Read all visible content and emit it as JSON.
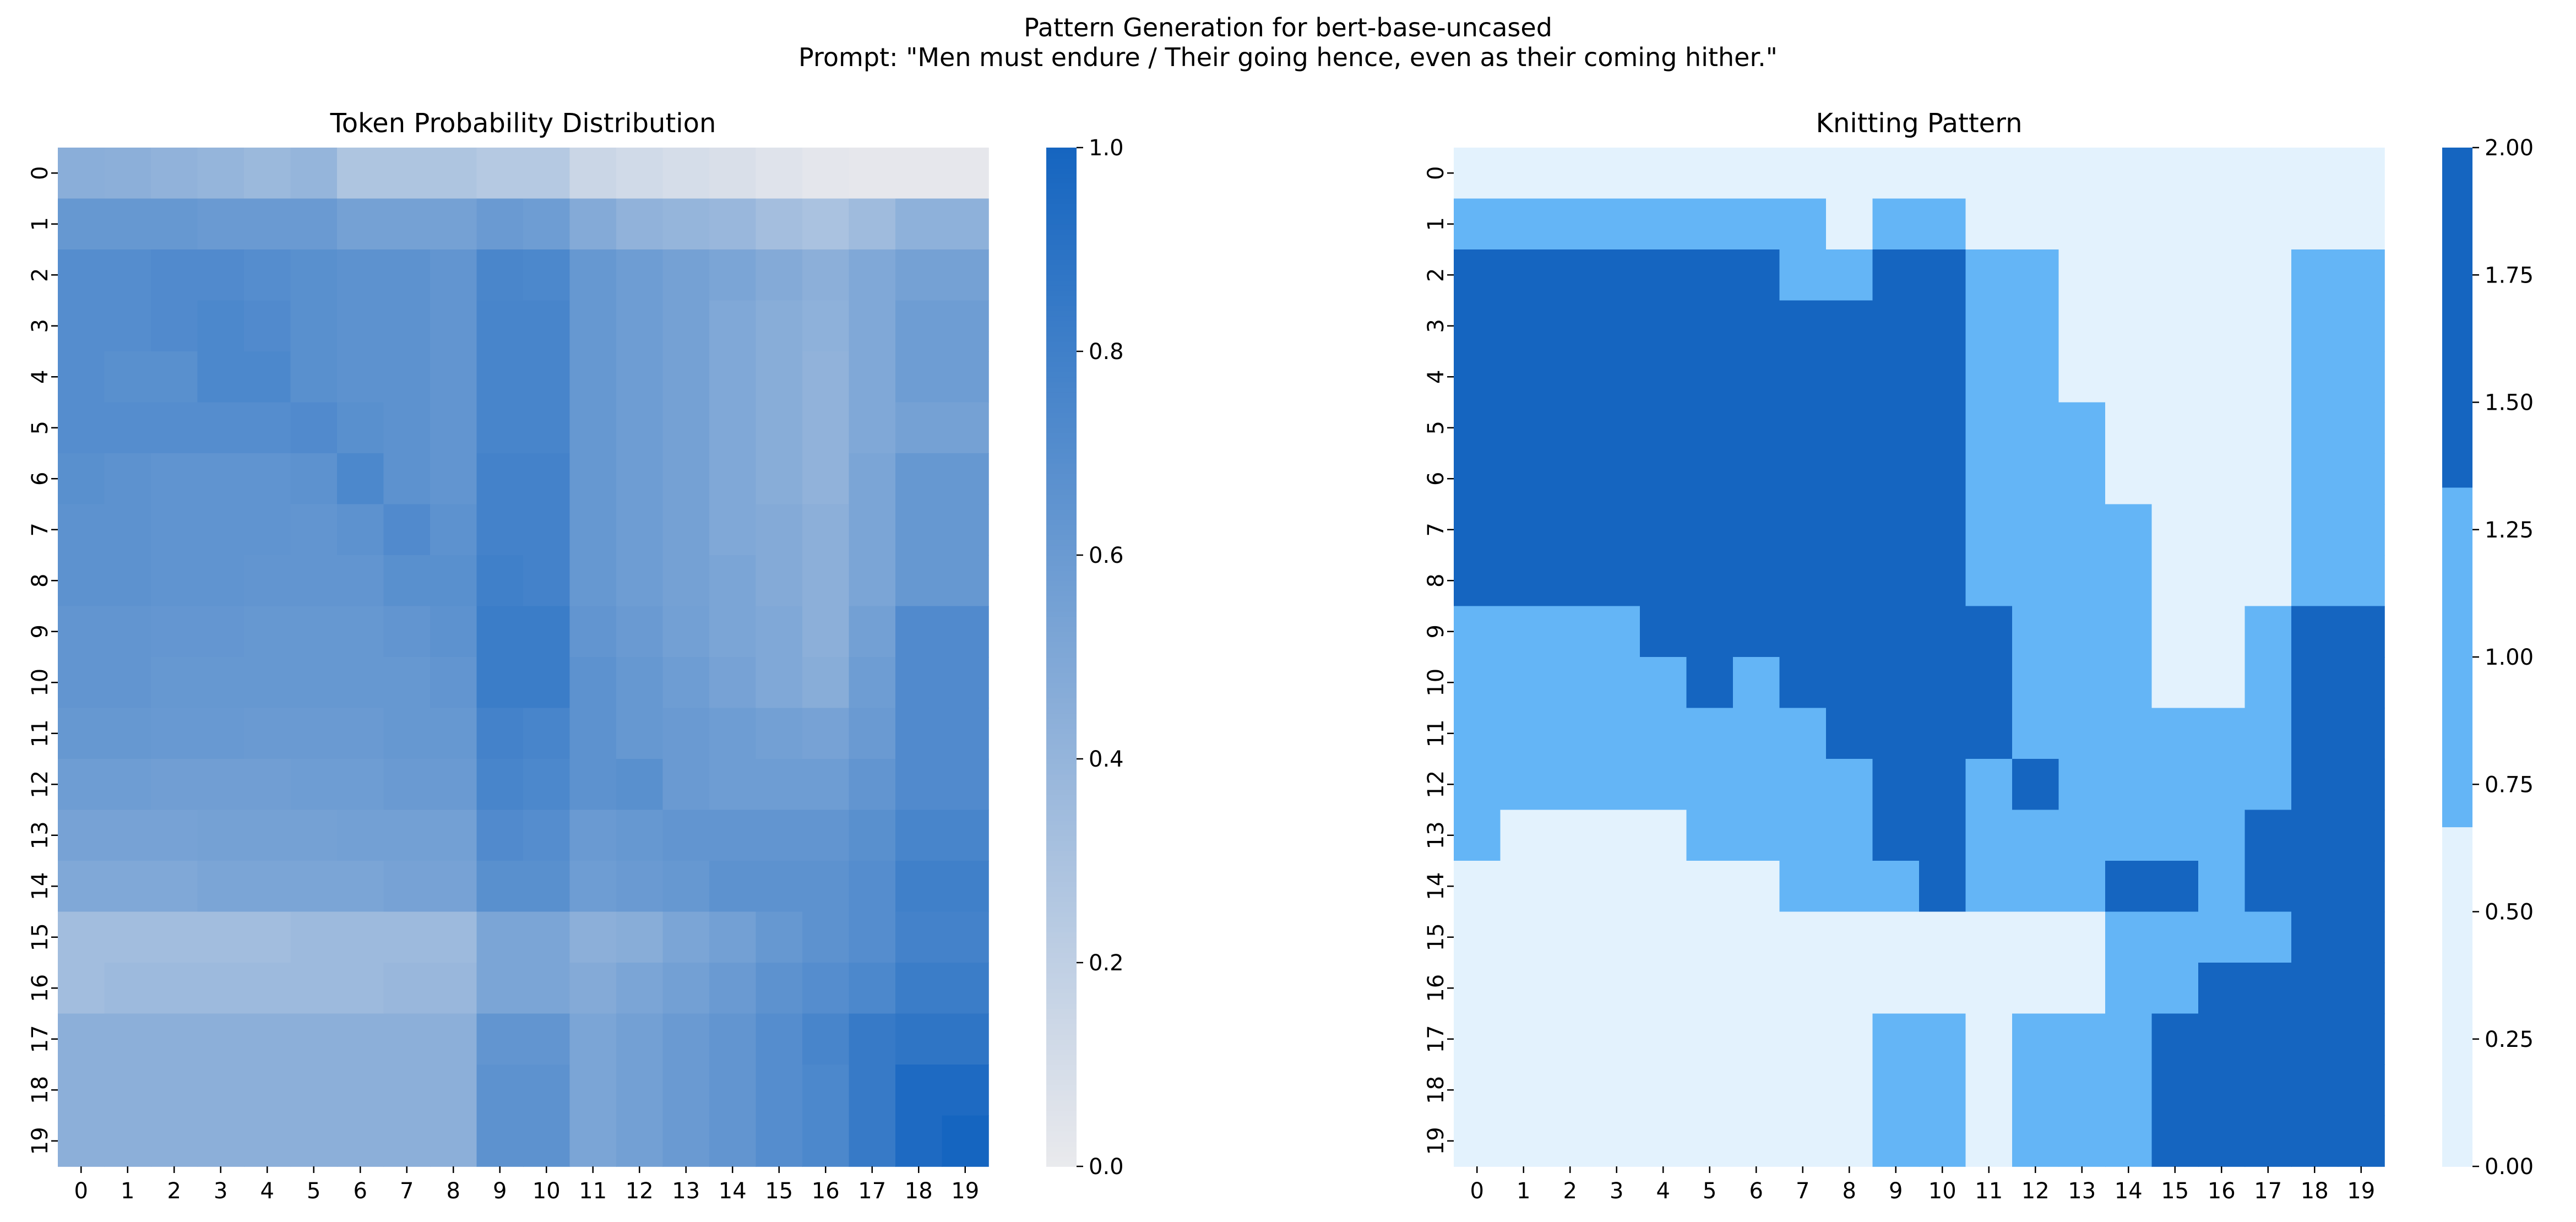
{
  "figure": {
    "title_line1": "Pattern Generation for bert-base-uncased",
    "title_line2": "Prompt: \"Men must endure / Their going hence, even as their coming hither.\""
  },
  "chart_data": [
    {
      "type": "heatmap",
      "title": "Token Probability Distribution",
      "xticks": [
        "0",
        "1",
        "2",
        "3",
        "4",
        "5",
        "6",
        "7",
        "8",
        "9",
        "10",
        "11",
        "12",
        "13",
        "14",
        "15",
        "16",
        "17",
        "18",
        "19"
      ],
      "yticks": [
        "0",
        "1",
        "2",
        "3",
        "4",
        "5",
        "6",
        "7",
        "8",
        "9",
        "10",
        "11",
        "12",
        "13",
        "14",
        "15",
        "16",
        "17",
        "18",
        "19"
      ],
      "colorbar": {
        "min": 0.0,
        "max": 1.0,
        "ticks": [
          "0.0",
          "0.2",
          "0.4",
          "0.6",
          "0.8",
          "1.0"
        ],
        "tick_values": [
          0,
          0.2,
          0.4,
          0.6,
          0.8,
          1.0
        ]
      },
      "colormap": {
        "low": "#eaeaed",
        "high": "#1565c0"
      },
      "values": [
        [
          0.45,
          0.44,
          0.42,
          0.4,
          0.37,
          0.4,
          0.28,
          0.28,
          0.28,
          0.25,
          0.25,
          0.15,
          0.12,
          0.1,
          0.08,
          0.05,
          0.03,
          0.02,
          0.02,
          0.02
        ],
        [
          0.62,
          0.62,
          0.62,
          0.6,
          0.6,
          0.6,
          0.55,
          0.55,
          0.55,
          0.6,
          0.58,
          0.48,
          0.42,
          0.4,
          0.38,
          0.33,
          0.3,
          0.35,
          0.43,
          0.43
        ],
        [
          0.7,
          0.7,
          0.72,
          0.72,
          0.7,
          0.68,
          0.66,
          0.66,
          0.64,
          0.75,
          0.74,
          0.62,
          0.58,
          0.55,
          0.52,
          0.48,
          0.44,
          0.5,
          0.55,
          0.55
        ],
        [
          0.7,
          0.7,
          0.72,
          0.74,
          0.72,
          0.68,
          0.66,
          0.66,
          0.64,
          0.76,
          0.76,
          0.62,
          0.58,
          0.55,
          0.5,
          0.46,
          0.43,
          0.5,
          0.58,
          0.58
        ],
        [
          0.7,
          0.68,
          0.68,
          0.74,
          0.74,
          0.68,
          0.66,
          0.66,
          0.64,
          0.76,
          0.76,
          0.62,
          0.58,
          0.55,
          0.5,
          0.46,
          0.42,
          0.5,
          0.58,
          0.58
        ],
        [
          0.7,
          0.7,
          0.7,
          0.7,
          0.7,
          0.72,
          0.68,
          0.66,
          0.64,
          0.76,
          0.76,
          0.62,
          0.58,
          0.55,
          0.5,
          0.46,
          0.42,
          0.5,
          0.55,
          0.55
        ],
        [
          0.68,
          0.66,
          0.65,
          0.65,
          0.65,
          0.66,
          0.74,
          0.66,
          0.64,
          0.78,
          0.78,
          0.62,
          0.58,
          0.55,
          0.5,
          0.46,
          0.42,
          0.52,
          0.62,
          0.62
        ],
        [
          0.66,
          0.66,
          0.65,
          0.65,
          0.65,
          0.64,
          0.66,
          0.72,
          0.66,
          0.78,
          0.78,
          0.62,
          0.58,
          0.55,
          0.5,
          0.48,
          0.44,
          0.52,
          0.62,
          0.62
        ],
        [
          0.66,
          0.66,
          0.65,
          0.65,
          0.64,
          0.64,
          0.64,
          0.68,
          0.68,
          0.8,
          0.78,
          0.62,
          0.58,
          0.55,
          0.52,
          0.48,
          0.44,
          0.52,
          0.62,
          0.62
        ],
        [
          0.64,
          0.64,
          0.63,
          0.63,
          0.62,
          0.62,
          0.62,
          0.64,
          0.66,
          0.82,
          0.82,
          0.64,
          0.6,
          0.56,
          0.52,
          0.5,
          0.44,
          0.56,
          0.72,
          0.72
        ],
        [
          0.64,
          0.64,
          0.62,
          0.62,
          0.62,
          0.62,
          0.62,
          0.62,
          0.64,
          0.82,
          0.82,
          0.66,
          0.62,
          0.58,
          0.54,
          0.5,
          0.46,
          0.58,
          0.72,
          0.72
        ],
        [
          0.62,
          0.62,
          0.61,
          0.61,
          0.6,
          0.6,
          0.6,
          0.62,
          0.62,
          0.78,
          0.76,
          0.66,
          0.62,
          0.6,
          0.58,
          0.56,
          0.54,
          0.6,
          0.72,
          0.72
        ],
        [
          0.58,
          0.58,
          0.57,
          0.57,
          0.57,
          0.58,
          0.58,
          0.6,
          0.6,
          0.76,
          0.74,
          0.66,
          0.68,
          0.6,
          0.58,
          0.58,
          0.58,
          0.64,
          0.72,
          0.72
        ],
        [
          0.54,
          0.54,
          0.54,
          0.55,
          0.55,
          0.55,
          0.56,
          0.56,
          0.56,
          0.72,
          0.7,
          0.6,
          0.62,
          0.64,
          0.64,
          0.64,
          0.64,
          0.68,
          0.76,
          0.76
        ],
        [
          0.5,
          0.5,
          0.5,
          0.52,
          0.52,
          0.52,
          0.52,
          0.54,
          0.54,
          0.68,
          0.68,
          0.58,
          0.6,
          0.62,
          0.66,
          0.66,
          0.66,
          0.7,
          0.8,
          0.8
        ],
        [
          0.34,
          0.34,
          0.34,
          0.34,
          0.34,
          0.36,
          0.36,
          0.36,
          0.36,
          0.52,
          0.52,
          0.44,
          0.46,
          0.52,
          0.56,
          0.62,
          0.66,
          0.7,
          0.78,
          0.78
        ],
        [
          0.34,
          0.36,
          0.36,
          0.36,
          0.36,
          0.36,
          0.36,
          0.38,
          0.38,
          0.52,
          0.52,
          0.48,
          0.52,
          0.56,
          0.6,
          0.66,
          0.7,
          0.74,
          0.82,
          0.82
        ],
        [
          0.44,
          0.44,
          0.44,
          0.44,
          0.44,
          0.44,
          0.44,
          0.44,
          0.44,
          0.64,
          0.64,
          0.52,
          0.56,
          0.6,
          0.64,
          0.7,
          0.76,
          0.84,
          0.88,
          0.88
        ],
        [
          0.44,
          0.44,
          0.44,
          0.44,
          0.44,
          0.44,
          0.44,
          0.44,
          0.44,
          0.66,
          0.66,
          0.52,
          0.56,
          0.6,
          0.64,
          0.7,
          0.74,
          0.84,
          0.96,
          0.96
        ],
        [
          0.44,
          0.44,
          0.44,
          0.44,
          0.44,
          0.44,
          0.44,
          0.44,
          0.44,
          0.66,
          0.66,
          0.52,
          0.56,
          0.6,
          0.64,
          0.7,
          0.74,
          0.84,
          0.96,
          1.0
        ]
      ]
    },
    {
      "type": "heatmap",
      "title": "Knitting Pattern",
      "xticks": [
        "0",
        "1",
        "2",
        "3",
        "4",
        "5",
        "6",
        "7",
        "8",
        "9",
        "10",
        "11",
        "12",
        "13",
        "14",
        "15",
        "16",
        "17",
        "18",
        "19"
      ],
      "yticks": [
        "0",
        "1",
        "2",
        "3",
        "4",
        "5",
        "6",
        "7",
        "8",
        "9",
        "10",
        "11",
        "12",
        "13",
        "14",
        "15",
        "16",
        "17",
        "18",
        "19"
      ],
      "colorbar": {
        "min": 0.0,
        "max": 2.0,
        "ticks": [
          "0.00",
          "0.25",
          "0.50",
          "0.75",
          "1.00",
          "1.25",
          "1.50",
          "1.75",
          "2.00"
        ],
        "tick_values": [
          0,
          0.25,
          0.5,
          0.75,
          1.0,
          1.25,
          1.5,
          1.75,
          2.0
        ]
      },
      "levels": [
        {
          "value": 0,
          "color": "#e3f2fd"
        },
        {
          "value": 1,
          "color": "#64b5f6"
        },
        {
          "value": 2,
          "color": "#1565c0"
        }
      ],
      "values": [
        [
          0,
          0,
          0,
          0,
          0,
          0,
          0,
          0,
          0,
          0,
          0,
          0,
          0,
          0,
          0,
          0,
          0,
          0,
          0,
          0
        ],
        [
          1,
          1,
          1,
          1,
          1,
          1,
          1,
          1,
          0,
          1,
          1,
          0,
          0,
          0,
          0,
          0,
          0,
          0,
          0,
          0
        ],
        [
          2,
          2,
          2,
          2,
          2,
          2,
          2,
          1,
          1,
          2,
          2,
          1,
          1,
          0,
          0,
          0,
          0,
          0,
          1,
          1
        ],
        [
          2,
          2,
          2,
          2,
          2,
          2,
          2,
          2,
          2,
          2,
          2,
          1,
          1,
          0,
          0,
          0,
          0,
          0,
          1,
          1
        ],
        [
          2,
          2,
          2,
          2,
          2,
          2,
          2,
          2,
          2,
          2,
          2,
          1,
          1,
          0,
          0,
          0,
          0,
          0,
          1,
          1
        ],
        [
          2,
          2,
          2,
          2,
          2,
          2,
          2,
          2,
          2,
          2,
          2,
          1,
          1,
          1,
          0,
          0,
          0,
          0,
          1,
          1
        ],
        [
          2,
          2,
          2,
          2,
          2,
          2,
          2,
          2,
          2,
          2,
          2,
          1,
          1,
          1,
          0,
          0,
          0,
          0,
          1,
          1
        ],
        [
          2,
          2,
          2,
          2,
          2,
          2,
          2,
          2,
          2,
          2,
          2,
          1,
          1,
          1,
          1,
          0,
          0,
          0,
          1,
          1
        ],
        [
          2,
          2,
          2,
          2,
          2,
          2,
          2,
          2,
          2,
          2,
          2,
          1,
          1,
          1,
          1,
          0,
          0,
          0,
          1,
          1
        ],
        [
          1,
          1,
          1,
          1,
          2,
          2,
          2,
          2,
          2,
          2,
          2,
          2,
          1,
          1,
          1,
          0,
          0,
          1,
          2,
          2
        ],
        [
          1,
          1,
          1,
          1,
          1,
          2,
          1,
          2,
          2,
          2,
          2,
          2,
          1,
          1,
          1,
          0,
          0,
          1,
          2,
          2
        ],
        [
          1,
          1,
          1,
          1,
          1,
          1,
          1,
          1,
          2,
          2,
          2,
          2,
          1,
          1,
          1,
          1,
          1,
          1,
          2,
          2
        ],
        [
          1,
          1,
          1,
          1,
          1,
          1,
          1,
          1,
          1,
          2,
          2,
          1,
          2,
          1,
          1,
          1,
          1,
          1,
          2,
          2
        ],
        [
          1,
          0,
          0,
          0,
          0,
          1,
          1,
          1,
          1,
          2,
          2,
          1,
          1,
          1,
          1,
          1,
          1,
          2,
          2,
          2
        ],
        [
          0,
          0,
          0,
          0,
          0,
          0,
          0,
          1,
          1,
          1,
          2,
          1,
          1,
          1,
          2,
          2,
          1,
          2,
          2,
          2
        ],
        [
          0,
          0,
          0,
          0,
          0,
          0,
          0,
          0,
          0,
          0,
          0,
          0,
          0,
          0,
          1,
          1,
          1,
          1,
          2,
          2
        ],
        [
          0,
          0,
          0,
          0,
          0,
          0,
          0,
          0,
          0,
          0,
          0,
          0,
          0,
          0,
          1,
          1,
          2,
          2,
          2,
          2
        ],
        [
          0,
          0,
          0,
          0,
          0,
          0,
          0,
          0,
          0,
          1,
          1,
          0,
          1,
          1,
          1,
          2,
          2,
          2,
          2,
          2
        ],
        [
          0,
          0,
          0,
          0,
          0,
          0,
          0,
          0,
          0,
          1,
          1,
          0,
          1,
          1,
          1,
          2,
          2,
          2,
          2,
          2
        ],
        [
          0,
          0,
          0,
          0,
          0,
          0,
          0,
          0,
          0,
          1,
          1,
          0,
          1,
          1,
          1,
          2,
          2,
          2,
          2,
          2
        ]
      ]
    }
  ]
}
